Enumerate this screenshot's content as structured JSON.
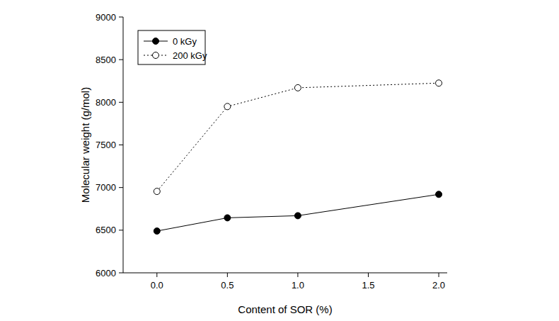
{
  "chart_data": {
    "type": "line",
    "x_label": "Content of SOR (%)",
    "y_label": "Molecular weight (g/mol)",
    "x": [
      0,
      0.5,
      1,
      2
    ],
    "series": [
      {
        "name": "0 kGy",
        "color": "#000000",
        "marker": "circle",
        "line_style": "solid",
        "values": [
          6490,
          6645,
          6670,
          6920
        ]
      },
      {
        "name": "200 kGy",
        "color": "#000000",
        "marker": "open_circle",
        "line_style": "dotted",
        "values": [
          6955,
          7950,
          8170,
          8225
        ]
      }
    ],
    "xlim": [
      -0.24,
      2.06
    ],
    "xticks": [
      {
        "value": 0,
        "label": "0.0"
      },
      0.5,
      {
        "value": 1,
        "label": "1.0"
      },
      1.5,
      {
        "value": 2,
        "label": "2.0"
      }
    ],
    "ylim": [
      6000,
      9000
    ],
    "yticks": [
      6000,
      6500,
      7000,
      7500,
      8000,
      8500,
      9000
    ],
    "grid": false,
    "legend": "upper left"
  }
}
